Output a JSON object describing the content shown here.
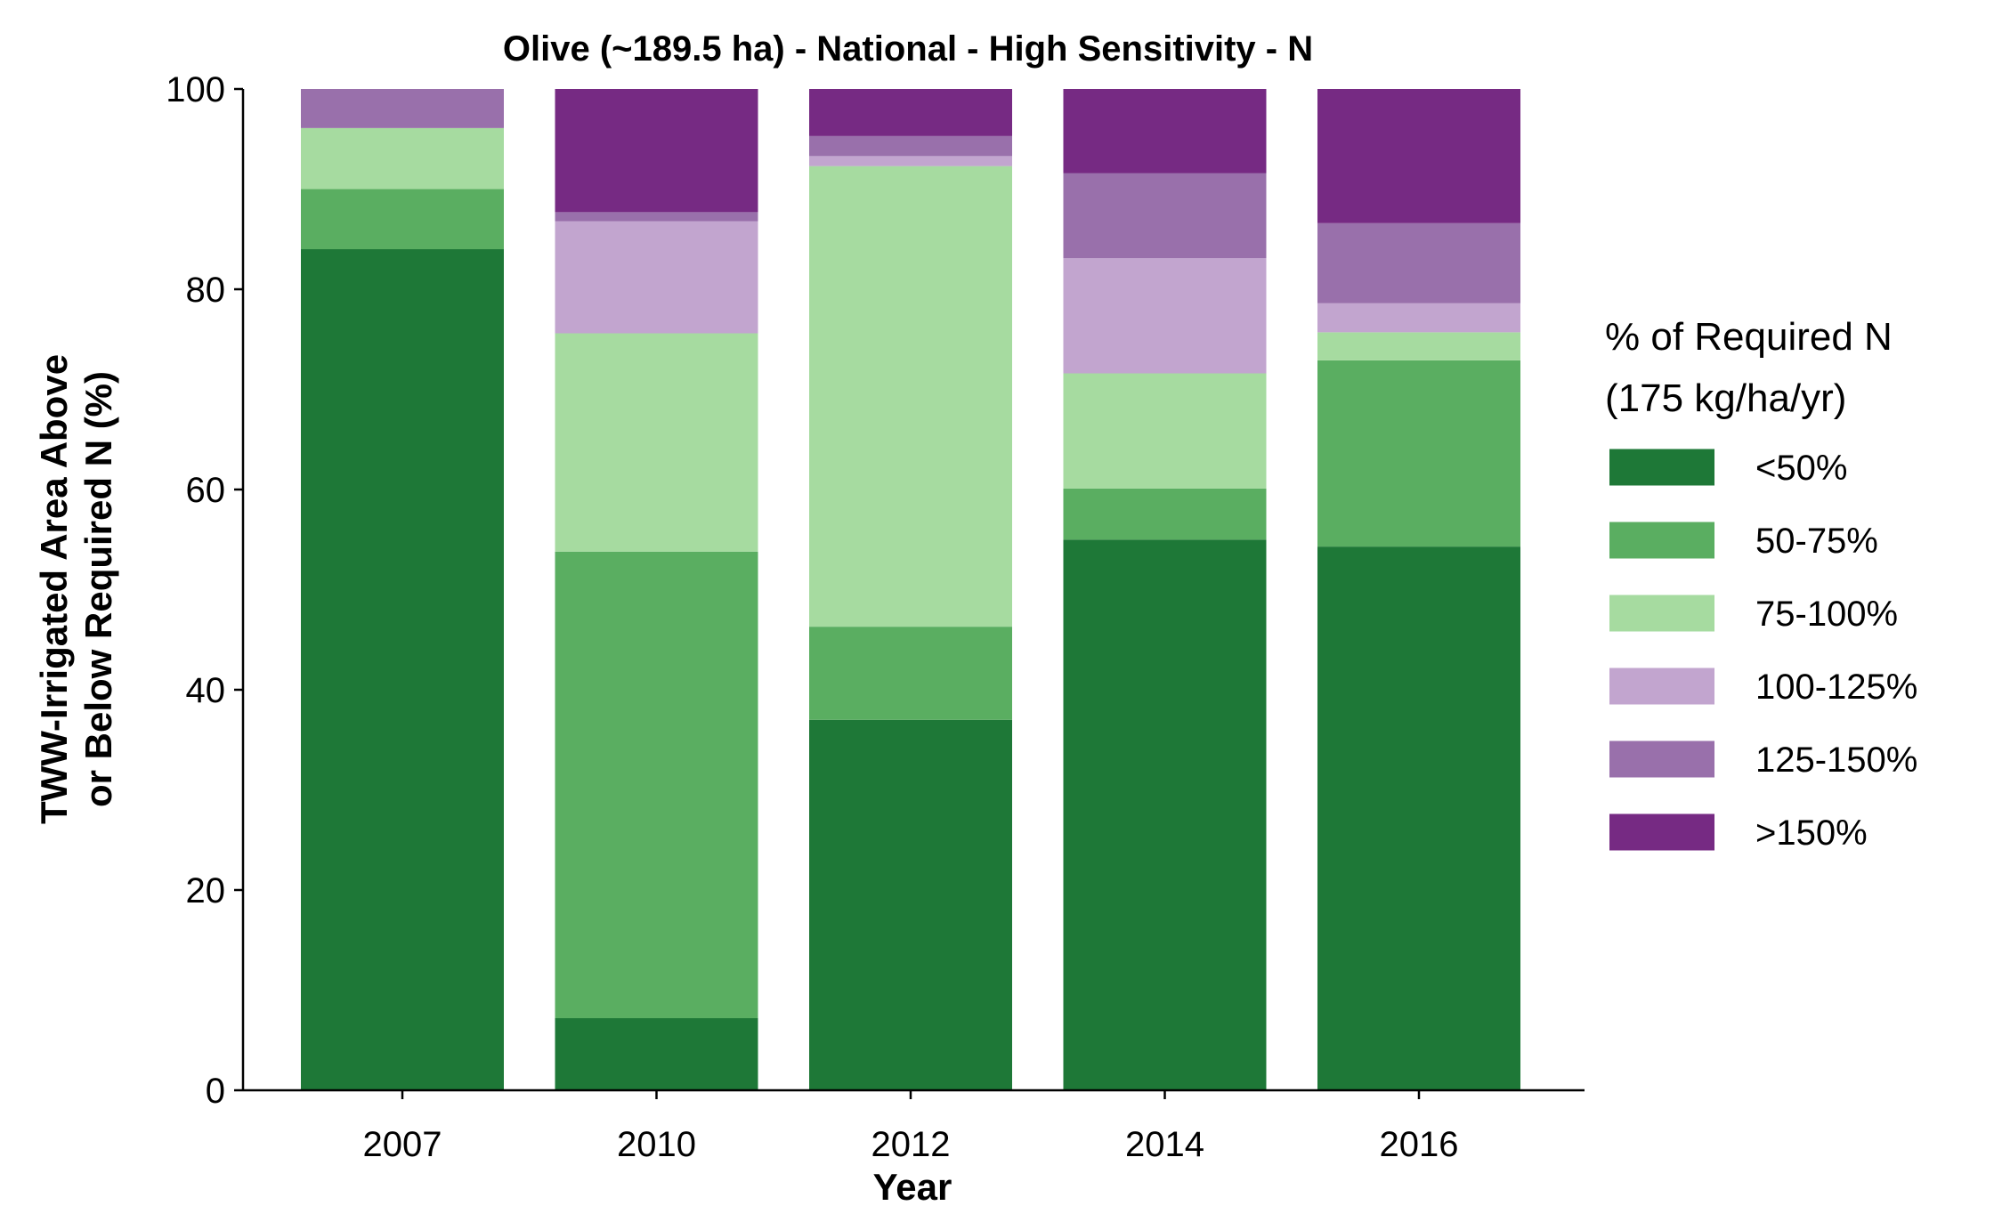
{
  "chart_data": {
    "type": "bar",
    "stacked": true,
    "title": "Olive (~189.5 ha) - National - High Sensitivity - N",
    "xlabel": "Year",
    "ylabel_lines": [
      "TWW-Irrigated Area Above",
      "or Below Required N (%)"
    ],
    "ylim": [
      0,
      100
    ],
    "yticks": [
      "0",
      "20",
      "40",
      "60",
      "80",
      "100"
    ],
    "grid": false,
    "legend_position": "right",
    "legend_title_lines": [
      "% of Required N",
      "(175 kg/ha/yr)"
    ],
    "categories": [
      "2007",
      "2010",
      "2012",
      "2014",
      "2016"
    ],
    "series": [
      {
        "name": "<50%",
        "color": "#1e7837",
        "values": [
          84.0,
          7.2,
          37.0,
          55.0,
          54.3
        ]
      },
      {
        "name": "50-75%",
        "color": "#5aae61",
        "values": [
          6.0,
          46.6,
          9.3,
          5.1,
          18.6
        ]
      },
      {
        "name": "75-100%",
        "color": "#a6dba0",
        "values": [
          6.1,
          21.8,
          46.0,
          11.5,
          2.8
        ]
      },
      {
        "name": "100-125%",
        "color": "#c2a5cf",
        "values": [
          0.0,
          11.2,
          1.0,
          11.5,
          2.9
        ]
      },
      {
        "name": "125-150%",
        "color": "#9970ab",
        "values": [
          3.9,
          0.9,
          2.0,
          8.5,
          8.0
        ]
      },
      {
        "name": ">150%",
        "color": "#762a83",
        "values": [
          0.0,
          12.3,
          4.7,
          8.4,
          13.4
        ]
      }
    ]
  }
}
